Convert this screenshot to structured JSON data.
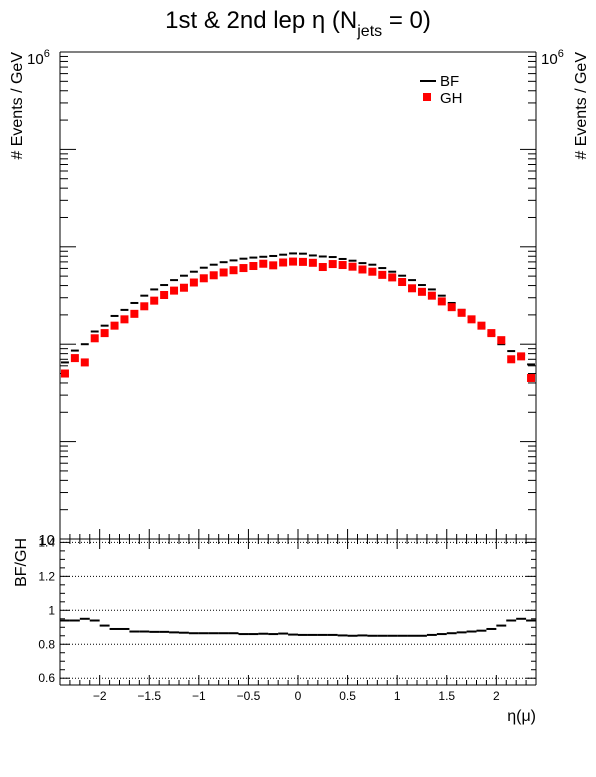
{
  "title": {
    "main": "1st & 2nd lep η (N",
    "subscript": "jets",
    "suffix": " = 0)"
  },
  "top_panel": {
    "ylabel_left": "# Events / GeV",
    "ylabel_right": "# Events / GeV",
    "ymax_label_base": "10",
    "ymax_label_exp": "6",
    "ymin_label": "10",
    "legend": [
      {
        "name": "BF",
        "marker": "dash",
        "color": "#000000"
      },
      {
        "name": "GH",
        "marker": "square",
        "color": "#ff0000"
      }
    ]
  },
  "bottom_panel": {
    "ylabel": "BF/GH",
    "yticks": [
      "1.4",
      "1.2",
      "1",
      "0.8",
      "0.6"
    ],
    "xticks": [
      "−2",
      "−1.5",
      "−1",
      "−0.5",
      "0",
      "0.5",
      "1",
      "1.5",
      "2"
    ],
    "xlabel": "η(μ)"
  },
  "chart_data": [
    {
      "type": "scatter",
      "log_y": true,
      "xlim": [
        -2.4,
        2.4
      ],
      "ylim": [
        10,
        1000000
      ],
      "x": [
        -2.35,
        -2.25,
        -2.15,
        -2.05,
        -1.95,
        -1.85,
        -1.75,
        -1.65,
        -1.55,
        -1.45,
        -1.35,
        -1.25,
        -1.15,
        -1.05,
        -0.95,
        -0.85,
        -0.75,
        -0.65,
        -0.55,
        -0.45,
        -0.35,
        -0.25,
        -0.15,
        -0.05,
        0.05,
        0.15,
        0.25,
        0.35,
        0.45,
        0.55,
        0.65,
        0.75,
        0.85,
        0.95,
        1.05,
        1.15,
        1.25,
        1.35,
        1.45,
        1.55,
        1.65,
        1.75,
        1.85,
        1.95,
        2.05,
        2.15,
        2.25,
        2.35
      ],
      "series": [
        {
          "name": "BF",
          "values": [
            650,
            860,
            1000,
            1350,
            1550,
            1950,
            2250,
            2650,
            3150,
            3650,
            4050,
            4550,
            5050,
            5550,
            6100,
            6550,
            6950,
            7250,
            7550,
            7750,
            7900,
            8050,
            8300,
            8550,
            8500,
            8150,
            7950,
            7850,
            7500,
            7200,
            6800,
            6550,
            6050,
            5550,
            5050,
            4550,
            4050,
            3650,
            3150,
            2650,
            2250,
            1900,
            1500,
            1250,
            1000,
            850,
            780,
            620
          ]
        },
        {
          "name": "GH",
          "values": [
            500,
            720,
            650,
            1150,
            1300,
            1550,
            1800,
            2050,
            2450,
            2800,
            3200,
            3550,
            3800,
            4300,
            4750,
            5100,
            5450,
            5750,
            6050,
            6350,
            6700,
            6450,
            6900,
            7050,
            7000,
            6850,
            6200,
            6650,
            6500,
            6250,
            5850,
            5550,
            5150,
            4850,
            4350,
            3750,
            3450,
            3150,
            2750,
            2400,
            2100,
            1800,
            1550,
            1300,
            1100,
            700,
            750,
            450
          ]
        }
      ]
    },
    {
      "type": "line",
      "name": "BF/GH",
      "xlim": [
        -2.4,
        2.4
      ],
      "ylim": [
        0.56,
        1.42
      ],
      "x": [
        -2.35,
        -2.25,
        -2.15,
        -2.05,
        -1.95,
        -1.85,
        -1.75,
        -1.65,
        -1.55,
        -1.45,
        -1.35,
        -1.25,
        -1.15,
        -1.05,
        -0.95,
        -0.85,
        -0.75,
        -0.65,
        -0.55,
        -0.45,
        -0.35,
        -0.25,
        -0.15,
        -0.05,
        0.05,
        0.15,
        0.25,
        0.35,
        0.45,
        0.55,
        0.65,
        0.75,
        0.85,
        0.95,
        1.05,
        1.15,
        1.25,
        1.35,
        1.45,
        1.55,
        1.65,
        1.75,
        1.85,
        1.95,
        2.05,
        2.15,
        2.25,
        2.35
      ],
      "values": [
        0.94,
        0.94,
        0.95,
        0.94,
        0.91,
        0.89,
        0.89,
        0.875,
        0.875,
        0.873,
        0.873,
        0.87,
        0.868,
        0.865,
        0.865,
        0.865,
        0.865,
        0.865,
        0.86,
        0.86,
        0.862,
        0.86,
        0.863,
        0.857,
        0.855,
        0.855,
        0.855,
        0.855,
        0.852,
        0.85,
        0.852,
        0.85,
        0.85,
        0.85,
        0.85,
        0.85,
        0.85,
        0.855,
        0.86,
        0.865,
        0.87,
        0.875,
        0.88,
        0.89,
        0.91,
        0.94,
        0.95,
        0.94
      ]
    }
  ]
}
